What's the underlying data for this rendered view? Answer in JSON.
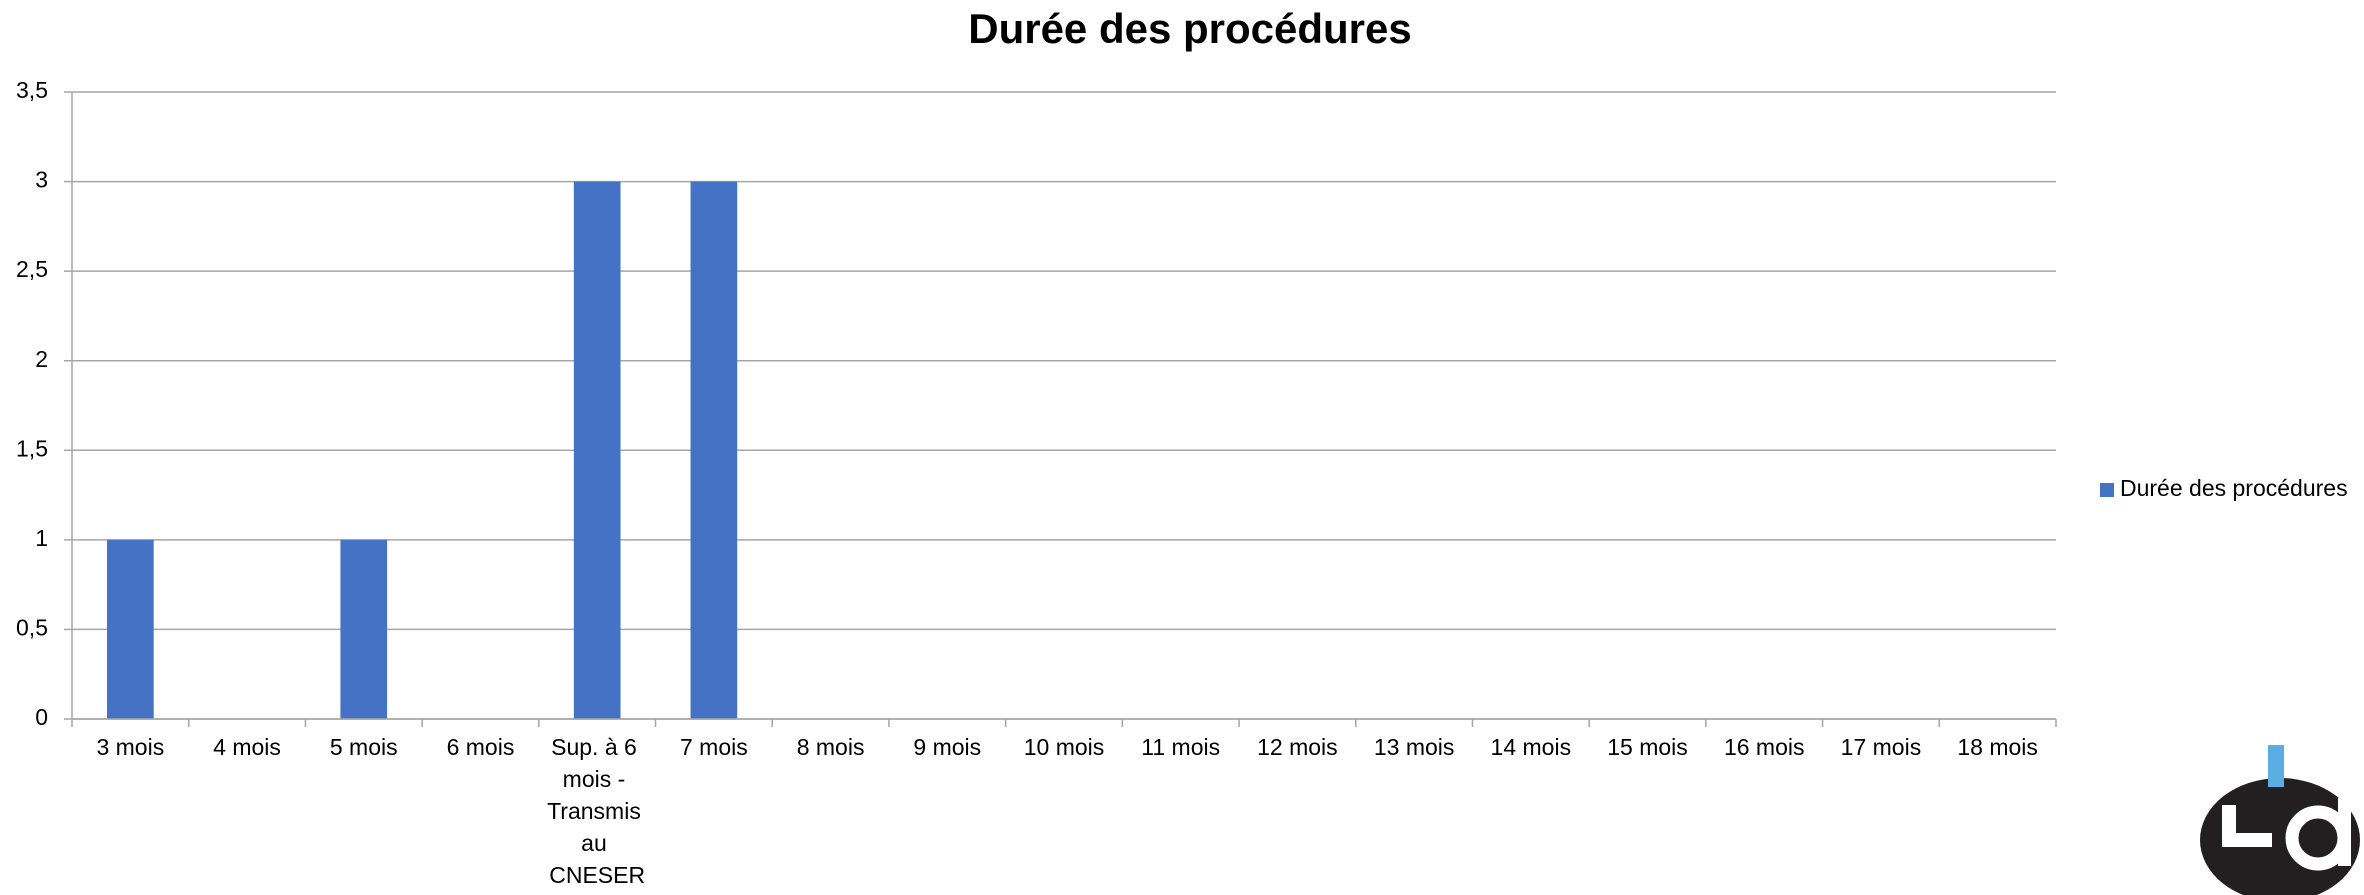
{
  "chart_data": {
    "type": "bar",
    "title": "Durée des procédures",
    "categories": [
      "3 mois",
      "4 mois",
      "5 mois",
      "6 mois",
      "Sup. à 6 mois - Transmis au CNESER",
      "7 mois",
      "8 mois",
      "9 mois",
      "10 mois",
      "11 mois",
      "12 mois",
      "13 mois",
      "14 mois",
      "15 mois",
      "16 mois",
      "17 mois",
      "18 mois"
    ],
    "series": [
      {
        "name": "Durée des procédures",
        "color": "#4472c4",
        "values": [
          1,
          0,
          1,
          0,
          3,
          3,
          0,
          0,
          0,
          0,
          0,
          0,
          0,
          0,
          0,
          0,
          0
        ]
      }
    ],
    "ylim": [
      0,
      3.5
    ],
    "yticks": [
      0,
      {
        "value": 0.5,
        "label": "0,5"
      },
      1,
      {
        "value": 1.5,
        "label": "1,5"
      },
      2,
      {
        "value": 2.5,
        "label": "2,5"
      },
      3,
      {
        "value": 3.5,
        "label": "3,5"
      }
    ],
    "grid": true,
    "legend": "right"
  }
}
